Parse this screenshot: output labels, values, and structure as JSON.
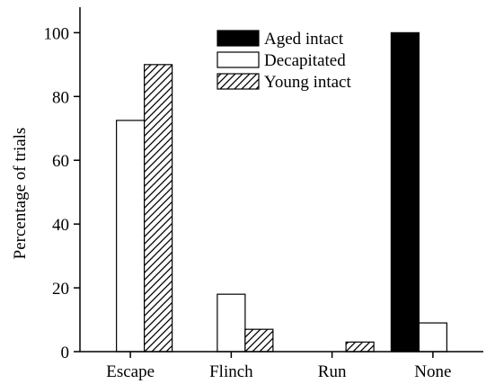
{
  "chart_data": {
    "type": "bar",
    "title": "",
    "xlabel": "",
    "ylabel": "Percentage of trials",
    "ylim": [
      0,
      108
    ],
    "yticks": [
      0,
      20,
      40,
      60,
      80,
      100
    ],
    "categories": [
      "Escape",
      "Flinch",
      "Run",
      "None"
    ],
    "series": [
      {
        "name": "Aged intact",
        "fill": "solid",
        "color": "#000000",
        "values": [
          0,
          0,
          0,
          100
        ]
      },
      {
        "name": "Decapitated",
        "fill": "open",
        "color": "#ffffff",
        "values": [
          72.5,
          18,
          0,
          9
        ]
      },
      {
        "name": "Young intact",
        "fill": "hatched",
        "color": "#000000",
        "values": [
          90,
          7,
          3,
          0
        ]
      }
    ],
    "legend_position": "top-center",
    "grid": false
  }
}
